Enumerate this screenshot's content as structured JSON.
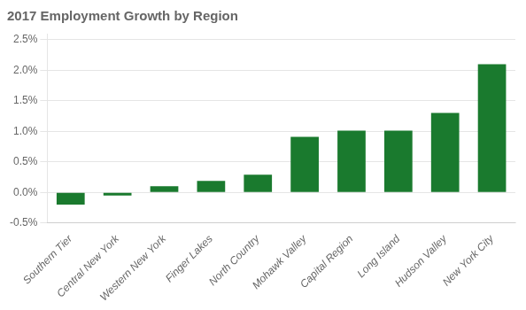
{
  "chart_data": {
    "type": "bar",
    "title": "2017 Employment Growth by Region",
    "categories": [
      "Southern Tier",
      "Central New York",
      "Western New York",
      "Finger Lakes",
      "North Country",
      "Mohawk Valley",
      "Capital Region",
      "Long Island",
      "Hudson Valley",
      "New York City"
    ],
    "values": [
      -0.002,
      -0.0005,
      0.001,
      0.0019,
      0.0029,
      0.0091,
      0.0101,
      0.0101,
      0.013,
      0.021
    ],
    "color": "#1a7a2e",
    "ylim": [
      -0.005,
      0.026
    ],
    "yticks": [
      {
        "value": -0.005,
        "label": "-0.5%"
      },
      {
        "value": 0.0,
        "label": "0.0%"
      },
      {
        "value": 0.005,
        "label": "0.5%"
      },
      {
        "value": 0.01,
        "label": "1.0%"
      },
      {
        "value": 0.015,
        "label": "1.5%"
      },
      {
        "value": 0.02,
        "label": "2.0%"
      },
      {
        "value": 0.025,
        "label": "2.5%"
      }
    ],
    "grid": true
  }
}
